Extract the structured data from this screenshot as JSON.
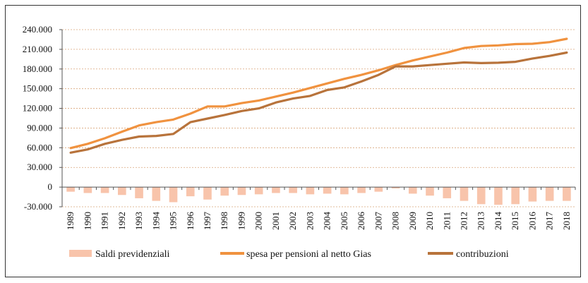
{
  "chart_data": {
    "type": "line",
    "title": "",
    "xlabel": "",
    "ylabel": "",
    "x": [
      "1989",
      "1990",
      "1991",
      "1992",
      "1993",
      "1994",
      "1995",
      "1996",
      "1997",
      "1998",
      "1999",
      "2000",
      "2001",
      "2002",
      "2003",
      "2004",
      "2005",
      "2006",
      "2007",
      "2008",
      "2009",
      "2010",
      "2011",
      "2012",
      "2013",
      "2014",
      "2015",
      "2016",
      "2017",
      "2018"
    ],
    "ylim": [
      -30000,
      240000
    ],
    "yticks": [
      240000,
      210000,
      180000,
      150000,
      120000,
      90000,
      60000,
      30000,
      0,
      -30000
    ],
    "ytick_labels": [
      "240.000",
      "210.000",
      "180.000",
      "150.000",
      "120.000",
      "90.000",
      "60.000",
      "30.000",
      "0",
      "-30.000"
    ],
    "grid": true,
    "legend_position": "bottom",
    "series": [
      {
        "name": "Saldi previdenziali",
        "kind": "bar",
        "color": "#f8c4ab",
        "values": [
          -7000,
          -9000,
          -9000,
          -12000,
          -17000,
          -21000,
          -23000,
          -14000,
          -19000,
          -13000,
          -12000,
          -11000,
          -9000,
          -9000,
          -11000,
          -10000,
          -11000,
          -9000,
          -7000,
          -2000,
          -10000,
          -13000,
          -17000,
          -21000,
          -26000,
          -27000,
          -26000,
          -22000,
          -21000,
          -21000
        ]
      },
      {
        "name": "spesa per pensioni al netto Gias",
        "kind": "line",
        "color": "#f0923f",
        "values": [
          59500,
          66000,
          74500,
          84500,
          94000,
          99000,
          103000,
          112000,
          123000,
          123000,
          128000,
          132000,
          138000,
          144000,
          151000,
          158000,
          165000,
          171000,
          178000,
          186000,
          193000,
          199000,
          205000,
          212000,
          215000,
          216000,
          218000,
          218500,
          221000,
          226000
        ]
      },
      {
        "name": "contribuzioni",
        "kind": "line",
        "color": "#b8733b",
        "values": [
          52500,
          57500,
          66000,
          72000,
          77000,
          78000,
          81000,
          99000,
          104500,
          110000,
          116000,
          120000,
          129000,
          135000,
          139000,
          148000,
          152000,
          161000,
          171000,
          184000,
          184000,
          186000,
          188000,
          190000,
          189000,
          189500,
          191000,
          196000,
          200000,
          205000
        ]
      }
    ]
  }
}
